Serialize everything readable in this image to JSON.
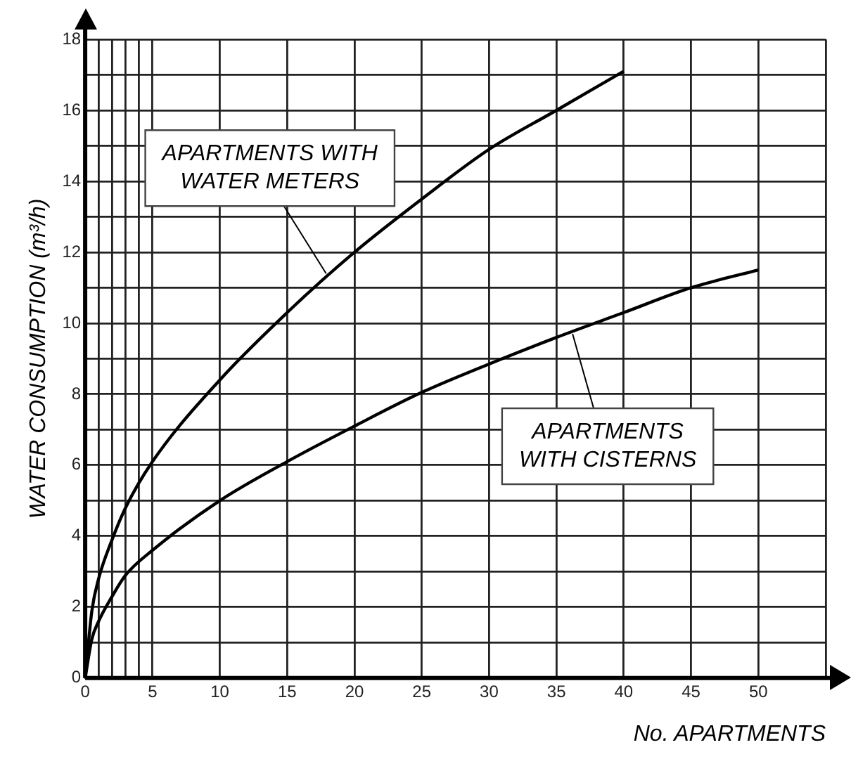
{
  "chart_data": {
    "type": "line",
    "xlabel": "No. APARTMENTS",
    "ylabel": "WATER CONSUMPTION (m³/h)",
    "series": [
      {
        "color": "#000000",
        "x": [
          0,
          0.5,
          1,
          2,
          3,
          5,
          10,
          15,
          20,
          25,
          30,
          35,
          40
        ],
        "values": [
          0,
          1.9,
          2.8,
          3.9,
          4.8,
          6.1,
          8.4,
          10.3,
          12.0,
          13.5,
          14.9,
          16.0,
          17.1
        ]
      },
      {
        "color": "#000000",
        "x": [
          0,
          0.5,
          1,
          2,
          3,
          5,
          10,
          15,
          20,
          25,
          30,
          35,
          40,
          45,
          50
        ],
        "values": [
          0,
          1.1,
          1.6,
          2.3,
          2.9,
          3.6,
          5.0,
          6.1,
          7.1,
          8.05,
          8.85,
          9.6,
          10.3,
          11.0,
          11.5
        ]
      }
    ],
    "xlim": [
      0,
      55
    ],
    "xticks": [
      0,
      {
        "value": 1,
        "label": null
      },
      {
        "value": 2,
        "label": null
      },
      {
        "value": 3,
        "label": null
      },
      {
        "value": 4,
        "label": null
      },
      5,
      10,
      15,
      20,
      25,
      30,
      35,
      40,
      45,
      50,
      {
        "value": 55,
        "label": null
      }
    ],
    "ylim": [
      0,
      18
    ],
    "yticks": [
      0,
      {
        "value": 1,
        "label": null
      },
      2,
      {
        "value": 3,
        "label": null
      },
      4,
      {
        "value": 5,
        "label": null
      },
      6,
      {
        "value": 7,
        "label": null
      },
      8,
      {
        "value": 9,
        "label": null
      },
      10,
      {
        "value": 11,
        "label": null
      },
      12,
      {
        "value": 13,
        "label": null
      },
      14,
      {
        "value": 15,
        "label": null
      },
      16,
      {
        "value": 17,
        "label": null
      },
      18
    ],
    "grid": true,
    "legend": false,
    "marker": "none",
    "line_style": "solid",
    "annotations": [
      {
        "text": "APARTMENTS WITH\nWATER METERS",
        "x": 17.9,
        "y": 11.4
      },
      {
        "text": "APARTMENTS\nWITH CISTERNS",
        "x": 36.2,
        "y": 9.7
      }
    ]
  }
}
